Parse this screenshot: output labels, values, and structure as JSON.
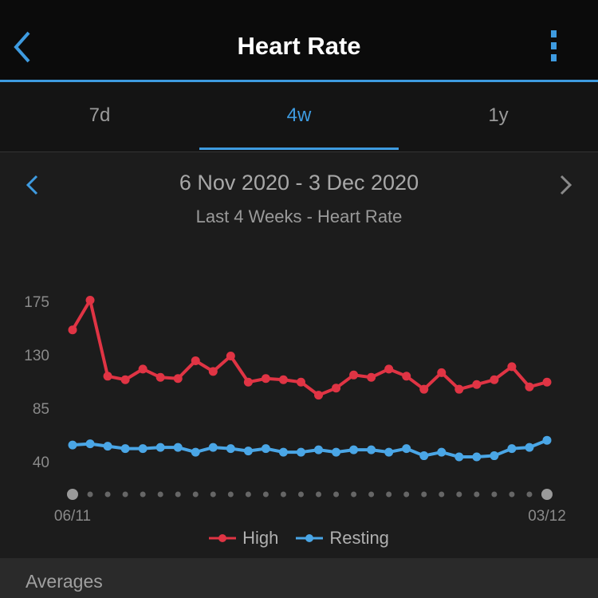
{
  "header": {
    "title": "Heart Rate",
    "back_icon": "chevron-left-icon",
    "menu_icon": "more-vertical-icon"
  },
  "tabs": [
    {
      "label": "7d",
      "active": false
    },
    {
      "label": "4w",
      "active": true
    },
    {
      "label": "1y",
      "active": false
    }
  ],
  "period": {
    "range": "6 Nov 2020 - 3 Dec 2020",
    "subtitle": "Last 4 Weeks - Heart Rate"
  },
  "colors": {
    "accent": "#3e9be0",
    "high": "#e03444",
    "resting": "#4aa6e6"
  },
  "chart_data": {
    "type": "line",
    "x": [
      "06/11",
      "07/11",
      "08/11",
      "09/11",
      "10/11",
      "11/11",
      "12/11",
      "13/11",
      "14/11",
      "15/11",
      "16/11",
      "17/11",
      "18/11",
      "19/11",
      "20/11",
      "21/11",
      "22/11",
      "23/11",
      "24/11",
      "25/11",
      "26/11",
      "27/11",
      "28/11",
      "29/11",
      "30/11",
      "01/12",
      "02/12",
      "03/12"
    ],
    "x_tick_labels": [
      "06/11",
      "03/12"
    ],
    "yticks": [
      175,
      130,
      85,
      40
    ],
    "series": [
      {
        "name": "High",
        "color": "#e03444",
        "values": [
          151,
          176,
          112,
          109,
          118,
          111,
          110,
          125,
          116,
          129,
          107,
          110,
          109,
          107,
          96,
          102,
          113,
          111,
          118,
          112,
          101,
          115,
          101,
          105,
          109,
          120,
          103,
          107
        ]
      },
      {
        "name": "Resting",
        "color": "#4aa6e6",
        "values": [
          54,
          55,
          53,
          51,
          51,
          52,
          52,
          48,
          52,
          51,
          49,
          51,
          48,
          48,
          50,
          48,
          50,
          50,
          48,
          51,
          45,
          48,
          44,
          44,
          45,
          51,
          52,
          58
        ]
      }
    ],
    "legend": "bottom"
  },
  "averages": {
    "label": "Averages"
  }
}
